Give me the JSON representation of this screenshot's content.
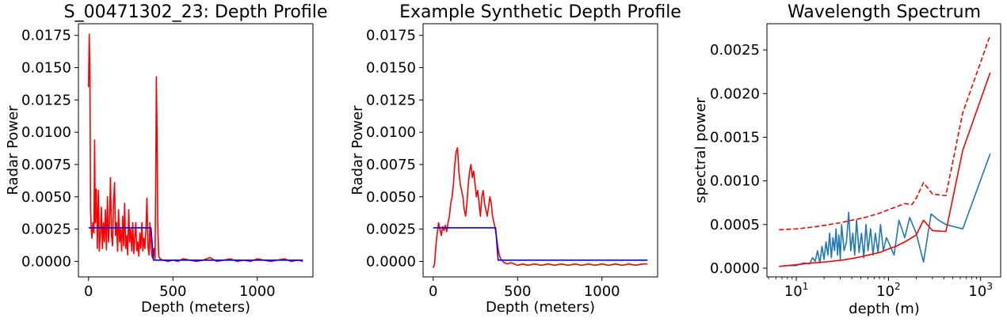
{
  "chart_data": [
    {
      "type": "line",
      "title": "S_00471302_23: Depth Profile",
      "xlabel": "Depth (meters)",
      "ylabel": "Radar Power",
      "xlim": [
        -60,
        1330
      ],
      "ylim": [
        -0.0012,
        0.0184
      ],
      "xticks": [
        0,
        500,
        1000
      ],
      "yticks": [
        0.0,
        0.0025,
        0.005,
        0.0075,
        0.01,
        0.0125,
        0.015,
        0.0175
      ],
      "xticklabels": [
        "0",
        "500",
        "1000"
      ],
      "yticklabels": [
        "0.0000",
        "0.0025",
        "0.0050",
        "0.0075",
        "0.0100",
        "0.0125",
        "0.0150",
        "0.0175"
      ],
      "grid": false,
      "series": [
        {
          "color": "#ff0000",
          "x": [
            0,
            4,
            8,
            12,
            16,
            20,
            26,
            32,
            36,
            40,
            46,
            52,
            58,
            64,
            70,
            76,
            82,
            88,
            94,
            100,
            106,
            112,
            118,
            124,
            130,
            136,
            142,
            148,
            154,
            160,
            166,
            172,
            178,
            184,
            190,
            196,
            202,
            208,
            214,
            220,
            226,
            232,
            238,
            244,
            250,
            256,
            262,
            268,
            274,
            280,
            286,
            292,
            298,
            304,
            310,
            316,
            322,
            328,
            334,
            340,
            346,
            352,
            358,
            364,
            370,
            376,
            382,
            388,
            394,
            398,
            402,
            406,
            410,
            416,
            424,
            440,
            470,
            500,
            530,
            560,
            600,
            640,
            680,
            720,
            760,
            800,
            840,
            880,
            920,
            960,
            1000,
            1040,
            1080,
            1120,
            1160,
            1200,
            1240,
            1270
          ],
          "y": [
            0.0135,
            0.0176,
            0.015,
            0.004,
            0.0025,
            0.0018,
            0.003,
            0.0022,
            0.0094,
            0.003,
            0.0056,
            0.001,
            0.0055,
            0.0008,
            0.0022,
            0.0042,
            0.001,
            0.003,
            0.0015,
            0.004,
            0.0009,
            0.005,
            0.0015,
            0.003,
            0.0065,
            0.002,
            0.0012,
            0.0045,
            0.0061,
            0.002,
            0.003,
            0.0008,
            0.004,
            0.0015,
            0.0025,
            0.0008,
            0.0035,
            0.0012,
            0.0045,
            0.001,
            0.002,
            0.0005,
            0.004,
            0.0015,
            0.0025,
            0.0008,
            0.003,
            0.0006,
            0.0018,
            0.003,
            0.0008,
            0.0015,
            0.0004,
            0.0022,
            0.001,
            0.003,
            0.0008,
            0.0018,
            0.001,
            0.0025,
            0.0049,
            0.0012,
            0.0005,
            0.003,
            0.001,
            0.0004,
            0.0002,
            0.001,
            0.0002,
            0.006,
            0.0143,
            0.01,
            0.003,
            0.0004,
            0.0002,
            0.0001,
            0.0,
            0.0001,
            0.0,
            0.0002,
            0.0001,
            0.0,
            0.0001,
            0.0003,
            0.0,
            0.0001,
            0.0002,
            0.0,
            0.0001,
            0.0,
            0.0002,
            0.0001,
            0.0,
            0.0001,
            0.0002,
            0.0,
            0.0001,
            0.0
          ]
        },
        {
          "color": "#0000ff",
          "x": [
            0,
            370,
            385,
            400,
            1270
          ],
          "y": [
            0.0026,
            0.0026,
            0.0001,
            0.0001,
            0.0001
          ]
        }
      ]
    },
    {
      "type": "line",
      "title": "Example Synthetic Depth Profile",
      "xlabel": "Depth (meters)",
      "ylabel": "Radar Power",
      "xlim": [
        -60,
        1330
      ],
      "ylim": [
        -0.0012,
        0.0184
      ],
      "xticks": [
        0,
        500,
        1000
      ],
      "yticks": [
        0.0,
        0.0025,
        0.005,
        0.0075,
        0.01,
        0.0125,
        0.015,
        0.0175
      ],
      "xticklabels": [
        "0",
        "500",
        "1000"
      ],
      "yticklabels": [
        "0.0000",
        "0.0025",
        "0.0050",
        "0.0075",
        "0.0100",
        "0.0125",
        "0.0150",
        "0.0175"
      ],
      "grid": false,
      "series": [
        {
          "color": "#ff0000",
          "x": [
            0,
            8,
            16,
            24,
            32,
            40,
            48,
            56,
            64,
            72,
            80,
            88,
            96,
            104,
            112,
            120,
            128,
            136,
            144,
            152,
            160,
            168,
            176,
            184,
            192,
            200,
            208,
            216,
            224,
            232,
            240,
            248,
            256,
            264,
            272,
            280,
            288,
            296,
            304,
            312,
            320,
            328,
            336,
            344,
            352,
            360,
            368,
            376,
            384,
            392,
            400,
            420,
            440,
            460,
            480,
            500,
            530,
            560,
            600,
            640,
            680,
            720,
            760,
            800,
            840,
            880,
            920,
            960,
            1000,
            1040,
            1080,
            1120,
            1160,
            1200,
            1240,
            1270
          ],
          "y": [
            -0.0005,
            -0.0002,
            0.0012,
            0.0022,
            0.003,
            0.0025,
            0.002,
            0.0027,
            0.0024,
            0.0028,
            0.0023,
            0.003,
            0.0035,
            0.0045,
            0.005,
            0.006,
            0.0075,
            0.0085,
            0.0088,
            0.007,
            0.006,
            0.0055,
            0.005,
            0.004,
            0.0035,
            0.0045,
            0.006,
            0.007,
            0.0075,
            0.0065,
            0.007,
            0.006,
            0.005,
            0.0055,
            0.0045,
            0.0035,
            0.005,
            0.0055,
            0.0045,
            0.004,
            0.0035,
            0.0042,
            0.005,
            0.0045,
            0.0035,
            0.003,
            0.0025,
            0.0018,
            0.001,
            0.0005,
            0.0002,
            -0.0001,
            -0.0002,
            -0.0001,
            -0.0002,
            -0.0003,
            -0.0002,
            -0.0003,
            -0.0002,
            -0.0003,
            -0.0002,
            -0.0003,
            -0.0002,
            -0.0003,
            -0.0002,
            -0.0003,
            -0.0002,
            -0.0003,
            -0.0002,
            -0.0003,
            -0.0002,
            -0.0003,
            -0.0002,
            -0.0003,
            -0.0002,
            -0.0002
          ]
        },
        {
          "color": "#0000ff",
          "x": [
            0,
            370,
            385,
            400,
            1270
          ],
          "y": [
            0.0026,
            0.0026,
            0.0001,
            0.0001,
            0.0001
          ]
        }
      ]
    },
    {
      "type": "line",
      "title": "Wavelength Spectrum",
      "xlabel": "depth (m)",
      "ylabel": "spectral power",
      "xscale": "log",
      "xlim": [
        4.8,
        1650
      ],
      "ylim": [
        -0.0001,
        0.0028
      ],
      "xticks": [
        10,
        100,
        1000
      ],
      "xtick_base": "10",
      "xtick_exponents": [
        "1",
        "2",
        "3"
      ],
      "yticks": [
        0.0,
        0.0005,
        0.001,
        0.0015,
        0.002,
        0.0025
      ],
      "yticklabels": [
        "0.0000",
        "0.0005",
        "0.0010",
        "0.0015",
        "0.0020",
        "0.0025"
      ],
      "grid": false,
      "series": [
        {
          "color": "#1f77b4",
          "style": "solid",
          "x": [
            6.5,
            8,
            10,
            12,
            14,
            15,
            16,
            17,
            18,
            19,
            20,
            21,
            22,
            23,
            24,
            25,
            26,
            27,
            28,
            29,
            30,
            31,
            33,
            35,
            37,
            39,
            41,
            43,
            45,
            48,
            51,
            54,
            57,
            60,
            64,
            68,
            72,
            77,
            82,
            88,
            95,
            105,
            115,
            130,
            150,
            170,
            200,
            240,
            290,
            350,
            420,
            640,
            1270
          ],
          "y": [
            2e-05,
            3e-05,
            3e-05,
            6e-05,
            5e-05,
            0.00012,
            8e-05,
            0.0002,
            6e-05,
            0.00025,
            0.0001,
            0.0003,
            0.00015,
            0.0004,
            0.00012,
            0.00035,
            0.0002,
            0.00045,
            0.00015,
            0.00038,
            0.0001,
            0.0005,
            0.0002,
            0.0003,
            0.00064,
            0.0002,
            0.0004,
            0.00015,
            0.00055,
            0.00018,
            0.0004,
            0.00012,
            0.0005,
            0.0002,
            0.00045,
            0.00015,
            0.0004,
            0.00018,
            0.0005,
            0.0002,
            0.00035,
            0.00025,
            0.00015,
            0.00055,
            0.00035,
            0.00058,
            0.0004,
            7e-05,
            0.00062,
            0.00055,
            0.0005,
            0.00045,
            0.00131
          ]
        },
        {
          "color": "#ff0000",
          "style": "solid",
          "x": [
            6.5,
            10,
            15,
            20,
            30,
            40,
            50,
            60,
            80,
            100,
            120,
            150,
            200,
            240,
            300,
            420,
            640,
            1270
          ],
          "y": [
            2e-05,
            4e-05,
            6e-05,
            7e-05,
            9e-05,
            0.00011,
            0.00013,
            0.00015,
            0.00018,
            0.00022,
            0.00025,
            0.0003,
            0.00038,
            0.00055,
            0.00043,
            0.00042,
            0.00135,
            0.00224
          ]
        },
        {
          "color": "#ff0000",
          "style": "dashed",
          "x": [
            6.5,
            10,
            15,
            20,
            30,
            40,
            50,
            60,
            80,
            100,
            120,
            150,
            180,
            200,
            240,
            300,
            420,
            640,
            1270
          ],
          "y": [
            0.00044,
            0.00045,
            0.00047,
            0.00049,
            0.00052,
            0.00055,
            0.00057,
            0.00059,
            0.00063,
            0.00067,
            0.0007,
            0.00074,
            0.00073,
            0.0008,
            0.00098,
            0.00085,
            0.00083,
            0.00178,
            0.00267
          ]
        }
      ]
    }
  ]
}
